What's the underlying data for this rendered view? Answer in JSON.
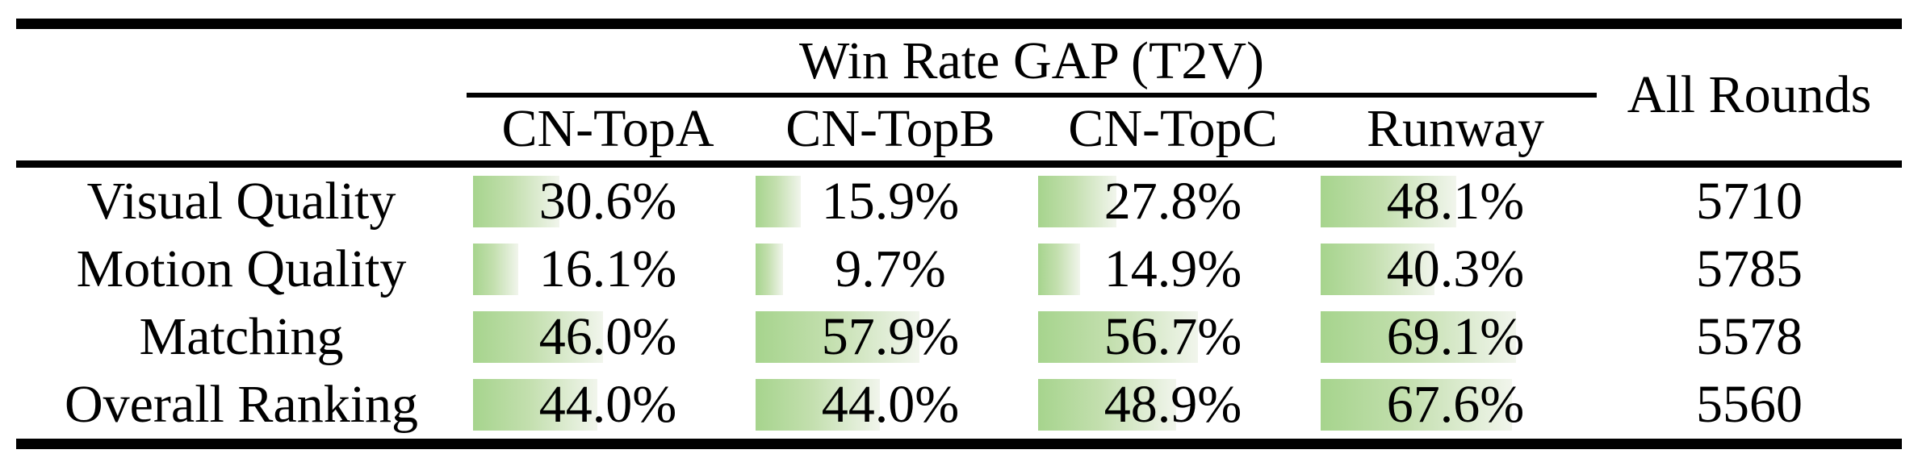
{
  "table": {
    "group_header": "Win Rate GAP (T2V)",
    "all_rounds_header": "All Rounds",
    "model_columns": [
      "CN-TopA",
      "CN-TopB",
      "CN-TopC",
      "Runway"
    ],
    "rows": [
      {
        "label": "Visual Quality",
        "values_text": [
          "30.6%",
          "15.9%",
          "27.8%",
          "48.1%"
        ],
        "values_pct": [
          30.6,
          15.9,
          27.8,
          48.1
        ],
        "all_rounds": "5710"
      },
      {
        "label": "Motion Quality",
        "values_text": [
          "16.1%",
          "9.7%",
          "14.9%",
          "40.3%"
        ],
        "values_pct": [
          16.1,
          9.7,
          14.9,
          40.3
        ],
        "all_rounds": "5785"
      },
      {
        "label": "Matching",
        "values_text": [
          "46.0%",
          "57.9%",
          "56.7%",
          "69.1%"
        ],
        "values_pct": [
          46.0,
          57.9,
          56.7,
          69.1
        ],
        "all_rounds": "5578"
      },
      {
        "label": "Overall Ranking",
        "values_text": [
          "44.0%",
          "44.0%",
          "48.9%",
          "67.6%"
        ],
        "values_pct": [
          44.0,
          44.0,
          48.9,
          67.6
        ],
        "all_rounds": "5560"
      }
    ]
  },
  "colors": {
    "bar_green": "#a6d48d",
    "bar_mid": "#c3dfae",
    "bar_fade": "#f1f5ec",
    "rule_black": "#000000",
    "text_black": "#000000",
    "background": "#ffffff"
  },
  "chart_data": {
    "type": "table",
    "title": "Win Rate GAP (T2V)",
    "columns": [
      "",
      "CN-TopA",
      "CN-TopB",
      "CN-TopC",
      "Runway",
      "All Rounds"
    ],
    "rows": [
      [
        "Visual Quality",
        30.6,
        15.9,
        27.8,
        48.1,
        5710
      ],
      [
        "Motion Quality",
        16.1,
        9.7,
        14.9,
        40.3,
        5785
      ],
      [
        "Matching",
        46.0,
        57.9,
        56.7,
        69.1,
        5578
      ],
      [
        "Overall Ranking",
        44.0,
        44.0,
        48.9,
        67.6,
        5560
      ]
    ],
    "value_unit": "%",
    "notes": "Win-rate percentage cells contain green gradient data bars whose width is proportional to the value; All Rounds column holds round counts."
  }
}
